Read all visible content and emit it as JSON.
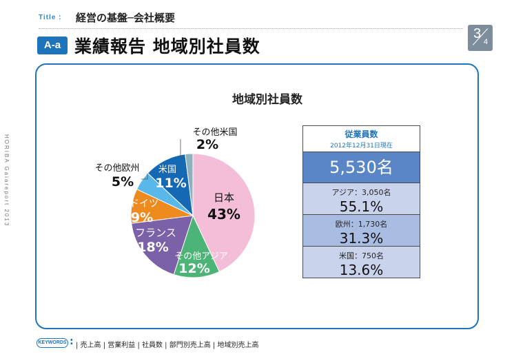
{
  "header": {
    "title_tag": "Title :",
    "title": "経営の基盤─会社概要",
    "section_badge": "A-a",
    "section_title": "業績報告 地域別社員数",
    "page_current": "3",
    "page_total": "4"
  },
  "sidebar_text": "HORIBA Gaiareport 2013",
  "chart_data": {
    "type": "pie",
    "title": "地域別社員数",
    "slices": [
      {
        "label": "日本",
        "percent_label": "43%",
        "value": 43,
        "color": "#f4bed8"
      },
      {
        "label": "その他アジア",
        "percent_label": "12%",
        "value": 12,
        "color": "#4db478"
      },
      {
        "label": "フランス",
        "percent_label": "18%",
        "value": 18,
        "color": "#7b62a8"
      },
      {
        "label": "ドイツ",
        "percent_label": "9%",
        "value": 9,
        "color": "#ee8b1e"
      },
      {
        "label": "その他欧州",
        "percent_label": "5%",
        "value": 5,
        "color": "#58b8ea"
      },
      {
        "label": "米国",
        "percent_label": "11%",
        "value": 11,
        "color": "#1468b4"
      },
      {
        "label": "その他米国",
        "percent_label": "2%",
        "value": 2,
        "color": "#8fb0bf"
      }
    ]
  },
  "employee_table": {
    "header": "従業員数",
    "date_note": "2012年12月31日現在",
    "total": "5,530名",
    "rows": [
      {
        "label": "アジア：3,050名",
        "percent": "55.1%"
      },
      {
        "label": "欧州：1,730名",
        "percent": "31.3%"
      },
      {
        "label": "米国：750名",
        "percent": "13.6%"
      }
    ]
  },
  "footer": {
    "keywords_label": "KEYWORDS",
    "keywords": "| 売上高 | 営業利益 | 社員数 | 部門別売上高 | 地域別売上高"
  }
}
